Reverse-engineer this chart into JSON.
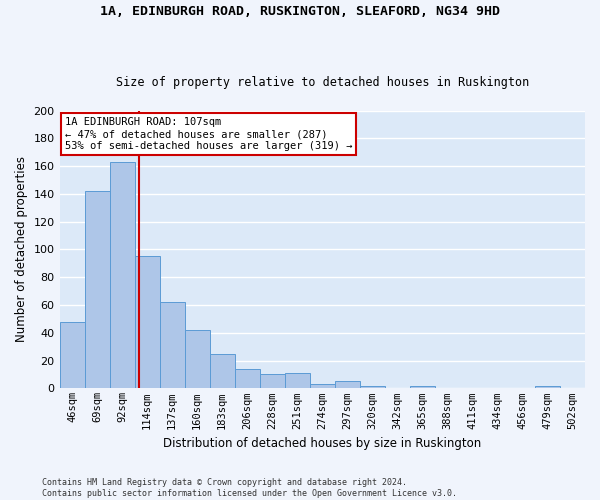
{
  "title1": "1A, EDINBURGH ROAD, RUSKINGTON, SLEAFORD, NG34 9HD",
  "title2": "Size of property relative to detached houses in Ruskington",
  "xlabel": "Distribution of detached houses by size in Ruskington",
  "ylabel": "Number of detached properties",
  "bar_labels": [
    "46sqm",
    "69sqm",
    "92sqm",
    "114sqm",
    "137sqm",
    "160sqm",
    "183sqm",
    "206sqm",
    "228sqm",
    "251sqm",
    "274sqm",
    "297sqm",
    "320sqm",
    "342sqm",
    "365sqm",
    "388sqm",
    "411sqm",
    "434sqm",
    "456sqm",
    "479sqm",
    "502sqm"
  ],
  "bar_values": [
    48,
    142,
    163,
    95,
    62,
    42,
    25,
    14,
    10,
    11,
    3,
    5,
    2,
    0,
    2,
    0,
    0,
    0,
    0,
    2,
    0
  ],
  "bar_color": "#aec6e8",
  "bar_edge_color": "#5b9bd5",
  "bg_color": "#dce9f8",
  "grid_color": "#ffffff",
  "annotation_line1": "1A EDINBURGH ROAD: 107sqm",
  "annotation_line2": "← 47% of detached houses are smaller (287)",
  "annotation_line3": "53% of semi-detached houses are larger (319) →",
  "vline_color": "#cc0000",
  "annotation_box_color": "#ffffff",
  "annotation_box_edge": "#cc0000",
  "footnote1": "Contains HM Land Registry data © Crown copyright and database right 2024.",
  "footnote2": "Contains public sector information licensed under the Open Government Licence v3.0.",
  "ylim": [
    0,
    200
  ],
  "yticks": [
    0,
    20,
    40,
    60,
    80,
    100,
    120,
    140,
    160,
    180,
    200
  ]
}
